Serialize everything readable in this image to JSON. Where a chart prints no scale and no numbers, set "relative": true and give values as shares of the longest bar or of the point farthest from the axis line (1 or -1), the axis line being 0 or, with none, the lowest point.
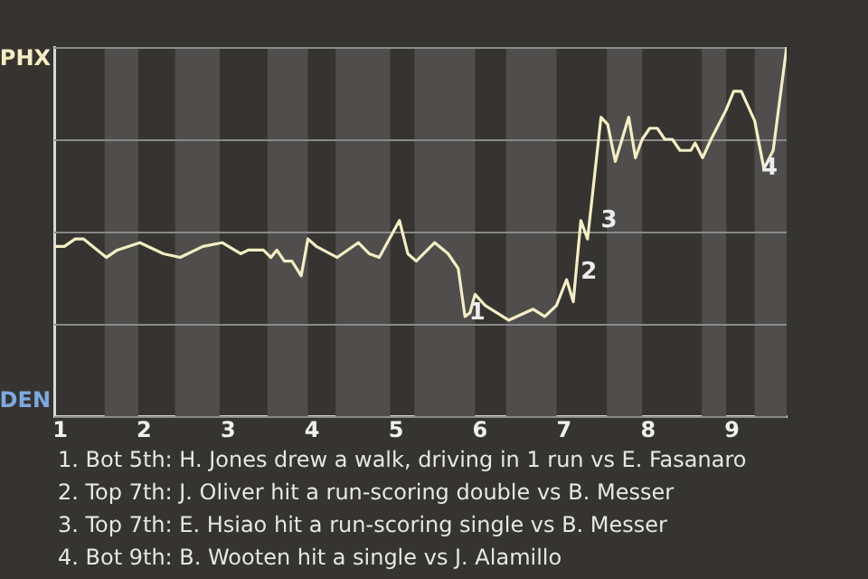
{
  "chart_data": {
    "type": "line",
    "relative": true,
    "x": [
      0.93,
      1.05,
      1.18,
      1.28,
      1.55,
      1.68,
      1.95,
      2.23,
      2.43,
      2.7,
      2.93,
      3.15,
      3.24,
      3.42,
      3.51,
      3.58,
      3.67,
      3.76,
      3.87,
      3.95,
      4.05,
      4.3,
      4.55,
      4.68,
      4.8,
      5.04,
      5.14,
      5.24,
      5.46,
      5.62,
      5.74,
      5.82,
      5.88,
      5.94,
      6.06,
      6.34,
      6.63,
      6.77,
      6.91,
      7.03,
      7.11,
      7.2,
      7.28,
      7.44,
      7.52,
      7.61,
      7.77,
      7.85,
      7.93,
      8.02,
      8.11,
      8.2,
      8.29,
      8.38,
      8.51,
      8.56,
      8.65,
      8.75,
      8.93,
      9.02,
      9.11,
      9.27,
      9.38,
      9.49,
      9.65
    ],
    "series": [
      {
        "values": [
          0.46,
          0.46,
          0.48,
          0.48,
          0.43,
          0.45,
          0.47,
          0.44,
          0.43,
          0.46,
          0.47,
          0.44,
          0.45,
          0.45,
          0.43,
          0.45,
          0.42,
          0.42,
          0.38,
          0.48,
          0.46,
          0.43,
          0.47,
          0.44,
          0.43,
          0.53,
          0.44,
          0.42,
          0.47,
          0.44,
          0.4,
          0.27,
          0.28,
          0.33,
          0.3,
          0.26,
          0.29,
          0.27,
          0.3,
          0.37,
          0.31,
          0.53,
          0.48,
          0.81,
          0.79,
          0.69,
          0.81,
          0.7,
          0.75,
          0.78,
          0.78,
          0.75,
          0.75,
          0.72,
          0.72,
          0.74,
          0.7,
          0.75,
          0.83,
          0.88,
          0.88,
          0.8,
          0.67,
          0.72,
          1.0
        ],
        "color": "#f3eec4"
      }
    ],
    "xlim": [
      0.93,
      9.65
    ],
    "xticks": [
      1,
      2,
      3,
      4,
      5,
      6,
      7,
      8,
      9
    ],
    "grid": "y",
    "legend": false,
    "marker": "none",
    "bands": [
      {
        "axis": "x",
        "from": 1.53,
        "to": 1.93,
        "color": "#4f4e4c"
      },
      {
        "axis": "x",
        "from": 2.37,
        "to": 2.9,
        "color": "#4f4e4c"
      },
      {
        "axis": "x",
        "from": 3.47,
        "to": 3.95,
        "color": "#4f4e4c"
      },
      {
        "axis": "x",
        "from": 4.28,
        "to": 4.93,
        "color": "#4f4e4c"
      },
      {
        "axis": "x",
        "from": 5.22,
        "to": 5.94,
        "color": "#4f4e4c"
      },
      {
        "axis": "x",
        "from": 6.31,
        "to": 6.91,
        "color": "#4f4e4c"
      },
      {
        "axis": "x",
        "from": 7.51,
        "to": 7.93,
        "color": "#4f4e4c"
      },
      {
        "axis": "x",
        "from": 8.64,
        "to": 8.93,
        "color": "#4f4e4c"
      },
      {
        "axis": "x",
        "from": 9.27,
        "to": 9.65,
        "color": "#4f4e4c"
      }
    ],
    "annotations": [
      "PHX",
      "DEN",
      {
        "text": "1",
        "x": 5.9,
        "y": 0.28
      },
      {
        "text": "2",
        "x": 7.23,
        "y": 0.39
      },
      {
        "text": "3",
        "x": 7.47,
        "y": 0.53
      },
      {
        "text": "4",
        "x": 9.38,
        "y": 0.67
      },
      "1. Bot 5th: H. Jones drew a walk, driving in 1 run vs E. Fasanaro",
      "2. Top 7th: J. Oliver hit a run-scoring double vs B. Messer",
      "3. Top 7th: E. Hsiao hit a run-scoring single vs B. Messer",
      "4. Bot 9th: B. Wooten hit a single vs J. Alamillo"
    ]
  }
}
